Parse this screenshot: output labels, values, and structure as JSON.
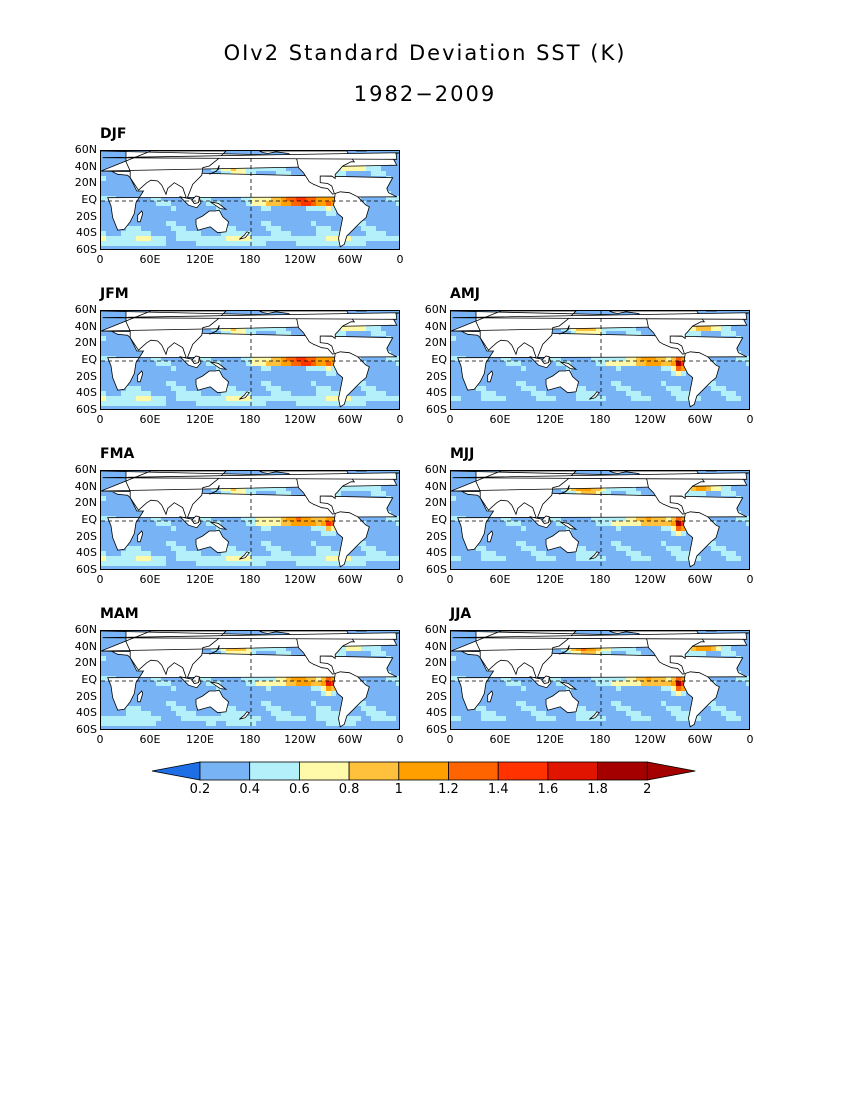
{
  "title": "OIv2 Standard Deviation SST (K)",
  "subtitle": "1982−2009",
  "y_ticks": [
    "60N",
    "40N",
    "20N",
    "EQ",
    "20S",
    "40S",
    "60S"
  ],
  "x_ticks": [
    "0",
    "60E",
    "120E",
    "180",
    "120W",
    "60W",
    "0"
  ],
  "panels": [
    {
      "label": "DJF",
      "enso": 1.9,
      "upwelling": 0.9,
      "nw_pacific": 0.8,
      "nw_atlantic": 0.9,
      "southern": 0.6
    },
    {
      "label": "JFM",
      "enso": 1.9,
      "upwelling": 0.9,
      "nw_pacific": 0.8,
      "nw_atlantic": 0.9,
      "southern": 0.6
    },
    {
      "label": "AMJ",
      "enso": 1.3,
      "upwelling": 1.7,
      "nw_pacific": 0.9,
      "nw_atlantic": 1.1,
      "southern": 0.4
    },
    {
      "label": "FMA",
      "enso": 1.5,
      "upwelling": 1.2,
      "nw_pacific": 0.8,
      "nw_atlantic": 0.7,
      "southern": 0.6
    },
    {
      "label": "MJJ",
      "enso": 1.2,
      "upwelling": 1.8,
      "nw_pacific": 1.1,
      "nw_atlantic": 1.2,
      "southern": 0.4
    },
    {
      "label": "MAM",
      "enso": 1.3,
      "upwelling": 1.6,
      "nw_pacific": 0.9,
      "nw_atlantic": 0.8,
      "southern": 0.5
    },
    {
      "label": "JJA",
      "enso": 1.2,
      "upwelling": 1.8,
      "nw_pacific": 1.2,
      "nw_atlantic": 1.3,
      "southern": 0.4
    }
  ],
  "colorbar": {
    "levels": [
      "0.2",
      "0.4",
      "0.6",
      "0.8",
      "1",
      "1.2",
      "1.4",
      "1.6",
      "1.8",
      "2"
    ],
    "colors": [
      "#1e6ee6",
      "#78b4f5",
      "#b4f0fa",
      "#fffaaa",
      "#ffc03c",
      "#ffa000",
      "#ff6400",
      "#ff3200",
      "#e11400",
      "#a50000",
      "#a50000"
    ]
  }
}
